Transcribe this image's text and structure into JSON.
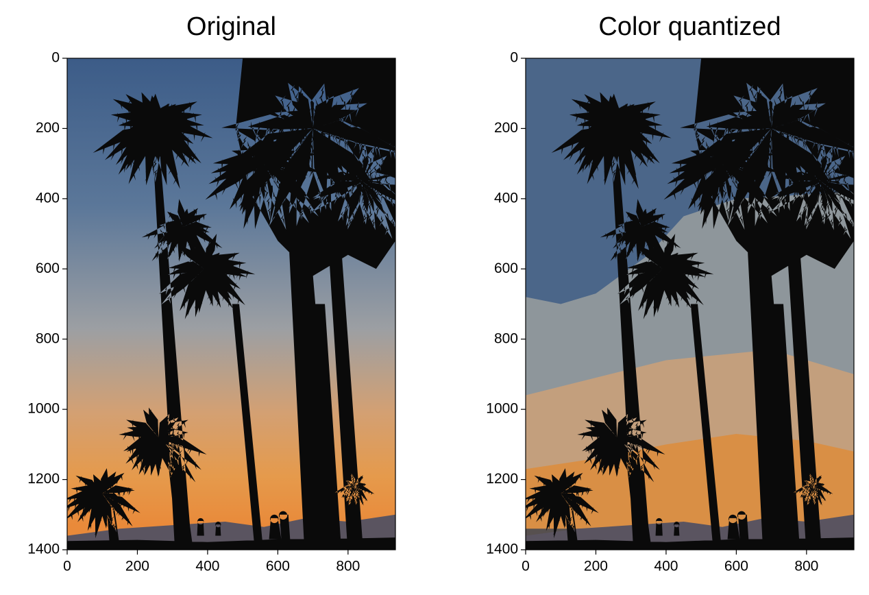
{
  "chart_data": [
    {
      "type": "image",
      "title": "Original",
      "xlim": [
        0,
        935
      ],
      "ylim": [
        1400,
        0
      ],
      "xticks": [
        0,
        200,
        400,
        600,
        800
      ],
      "yticks": [
        0,
        200,
        400,
        600,
        800,
        1000,
        1200,
        1400
      ],
      "colors": [
        "#3c5c88",
        "#5b7799",
        "#9c9fa3",
        "#d3a073",
        "#e59a4c",
        "#e98a3a"
      ],
      "banded": false
    },
    {
      "type": "image",
      "title": "Color quantized",
      "xlim": [
        0,
        935
      ],
      "ylim": [
        1400,
        0
      ],
      "xticks": [
        0,
        200,
        400,
        600,
        800
      ],
      "yticks": [
        0,
        200,
        400,
        600,
        800,
        1000,
        1200,
        1400
      ],
      "colors": [
        "#4b6689",
        "#8e969b",
        "#c39f7d",
        "#d98f45",
        "#57504f"
      ],
      "banded": true
    }
  ]
}
